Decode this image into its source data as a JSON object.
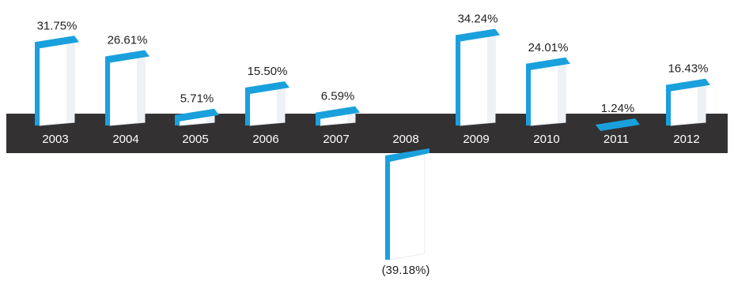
{
  "chart_data": {
    "type": "bar",
    "categories": [
      "2003",
      "2004",
      "2005",
      "2006",
      "2007",
      "2008",
      "2009",
      "2010",
      "2011",
      "2012"
    ],
    "values": [
      31.75,
      26.61,
      5.71,
      15.5,
      6.59,
      -39.18,
      34.24,
      24.01,
      1.24,
      16.43
    ],
    "value_labels": [
      "31.75%",
      "26.61%",
      "5.71%",
      "15.50%",
      "6.59%",
      "(39.18%)",
      "34.24%",
      "24.01%",
      "1.24%",
      "16.43%"
    ],
    "title": "",
    "xlabel": "",
    "ylabel": "",
    "grid": false,
    "legend": "none"
  },
  "colors": {
    "band": "#333132",
    "accent": "#1aa0dc",
    "bar_face": "#ffffff",
    "bar_shade": "#eef1f5",
    "year_text": "#ffffff",
    "value_text": "#222222"
  }
}
